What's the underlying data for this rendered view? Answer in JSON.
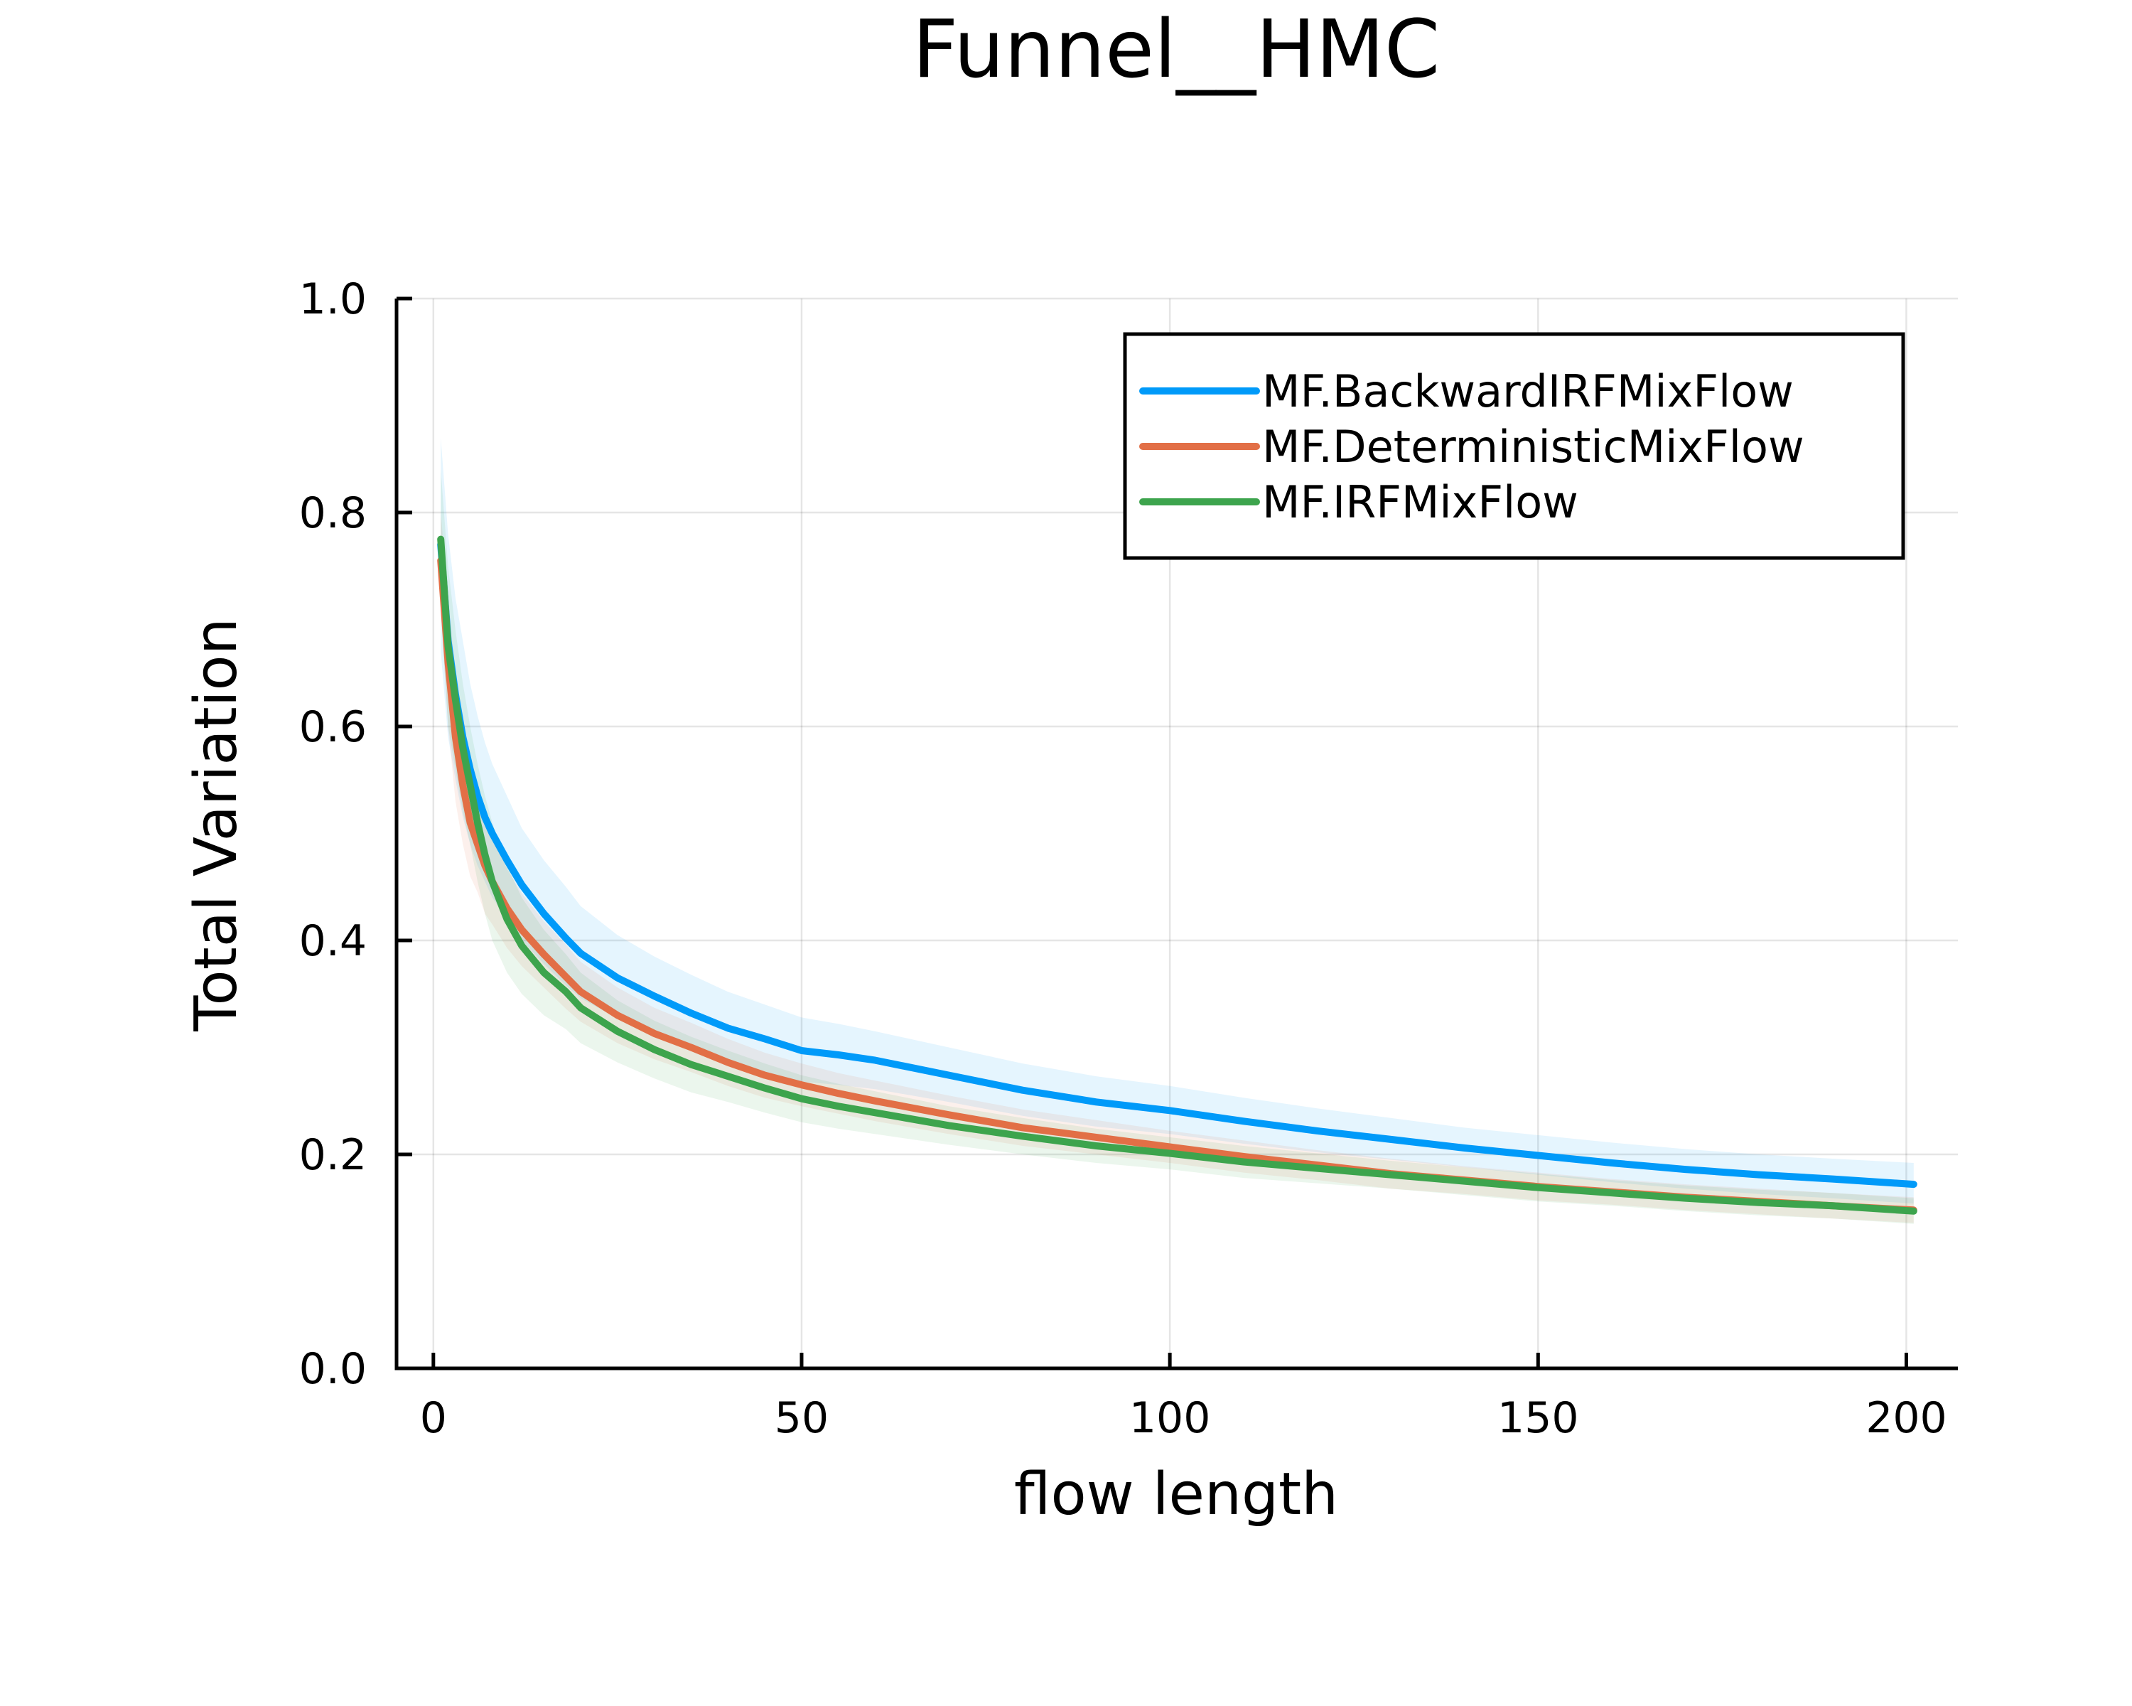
{
  "chart_data": {
    "type": "line",
    "title": "Funnel__HMC",
    "xlabel": "flow length",
    "ylabel": "Total Variation",
    "xlim": [
      -5,
      207
    ],
    "ylim": [
      0,
      1
    ],
    "xticks": [
      0,
      50,
      100,
      150,
      200
    ],
    "yticks": [
      0.0,
      0.2,
      0.4,
      0.6,
      0.8,
      1.0
    ],
    "xtick_labels": [
      "0",
      "50",
      "100",
      "150",
      "200"
    ],
    "ytick_labels": [
      "0.0",
      "0.2",
      "0.4",
      "0.6",
      "0.8",
      "1.0"
    ],
    "grid": true,
    "legend_position": "top-right",
    "x": [
      1,
      2,
      3,
      4,
      5,
      6,
      7,
      8,
      10,
      12,
      15,
      18,
      20,
      25,
      30,
      35,
      40,
      45,
      50,
      55,
      60,
      70,
      80,
      90,
      100,
      110,
      120,
      130,
      140,
      150,
      160,
      170,
      180,
      190,
      201
    ],
    "series": [
      {
        "name": "MF.BackwardIRFMixFlow",
        "color": "#009af9",
        "values": [
          0.77,
          0.68,
          0.63,
          0.59,
          0.56,
          0.535,
          0.515,
          0.5,
          0.475,
          0.452,
          0.425,
          0.402,
          0.388,
          0.365,
          0.348,
          0.332,
          0.318,
          0.308,
          0.297,
          0.293,
          0.288,
          0.274,
          0.26,
          0.249,
          0.241,
          0.231,
          0.222,
          0.214,
          0.206,
          0.199,
          0.192,
          0.186,
          0.181,
          0.177,
          0.172
        ],
        "upper": [
          0.87,
          0.78,
          0.72,
          0.68,
          0.64,
          0.61,
          0.585,
          0.565,
          0.535,
          0.505,
          0.475,
          0.45,
          0.432,
          0.405,
          0.385,
          0.368,
          0.352,
          0.34,
          0.328,
          0.322,
          0.315,
          0.3,
          0.285,
          0.273,
          0.264,
          0.253,
          0.243,
          0.234,
          0.225,
          0.218,
          0.211,
          0.205,
          0.2,
          0.196,
          0.192
        ],
        "lower": [
          0.67,
          0.59,
          0.55,
          0.515,
          0.49,
          0.47,
          0.455,
          0.44,
          0.42,
          0.4,
          0.378,
          0.358,
          0.346,
          0.327,
          0.313,
          0.298,
          0.286,
          0.277,
          0.268,
          0.265,
          0.261,
          0.249,
          0.236,
          0.226,
          0.219,
          0.21,
          0.202,
          0.195,
          0.188,
          0.181,
          0.174,
          0.168,
          0.163,
          0.159,
          0.154
        ]
      },
      {
        "name": "MF.DeterministicMixFlow",
        "color": "#e26f46",
        "values": [
          0.755,
          0.66,
          0.59,
          0.545,
          0.51,
          0.49,
          0.47,
          0.455,
          0.43,
          0.41,
          0.387,
          0.366,
          0.352,
          0.33,
          0.313,
          0.3,
          0.286,
          0.274,
          0.265,
          0.257,
          0.25,
          0.237,
          0.225,
          0.216,
          0.207,
          0.198,
          0.19,
          0.182,
          0.176,
          0.17,
          0.165,
          0.16,
          0.156,
          0.152,
          0.148
        ],
        "upper": [
          0.8,
          0.72,
          0.65,
          0.6,
          0.56,
          0.535,
          0.515,
          0.495,
          0.467,
          0.444,
          0.418,
          0.396,
          0.38,
          0.356,
          0.337,
          0.323,
          0.308,
          0.295,
          0.285,
          0.276,
          0.269,
          0.255,
          0.242,
          0.232,
          0.222,
          0.213,
          0.204,
          0.196,
          0.189,
          0.183,
          0.177,
          0.172,
          0.168,
          0.164,
          0.16
        ],
        "lower": [
          0.71,
          0.6,
          0.53,
          0.49,
          0.46,
          0.445,
          0.425,
          0.415,
          0.393,
          0.376,
          0.356,
          0.336,
          0.324,
          0.304,
          0.289,
          0.277,
          0.264,
          0.253,
          0.245,
          0.238,
          0.231,
          0.219,
          0.208,
          0.2,
          0.192,
          0.183,
          0.176,
          0.168,
          0.163,
          0.157,
          0.153,
          0.148,
          0.144,
          0.14,
          0.136
        ]
      },
      {
        "name": "MF.IRFMixFlow",
        "color": "#3da44d",
        "values": [
          0.775,
          0.675,
          0.625,
          0.58,
          0.545,
          0.51,
          0.48,
          0.455,
          0.42,
          0.395,
          0.37,
          0.352,
          0.337,
          0.315,
          0.298,
          0.284,
          0.273,
          0.262,
          0.252,
          0.245,
          0.239,
          0.227,
          0.217,
          0.208,
          0.201,
          0.193,
          0.187,
          0.181,
          0.175,
          0.169,
          0.164,
          0.159,
          0.155,
          0.152,
          0.147
        ],
        "upper": [
          0.84,
          0.75,
          0.69,
          0.64,
          0.6,
          0.565,
          0.535,
          0.51,
          0.47,
          0.44,
          0.41,
          0.387,
          0.37,
          0.344,
          0.325,
          0.31,
          0.297,
          0.285,
          0.274,
          0.266,
          0.259,
          0.245,
          0.234,
          0.224,
          0.216,
          0.208,
          0.201,
          0.194,
          0.188,
          0.182,
          0.176,
          0.171,
          0.167,
          0.164,
          0.159
        ],
        "lower": [
          0.71,
          0.6,
          0.56,
          0.52,
          0.49,
          0.455,
          0.425,
          0.4,
          0.37,
          0.35,
          0.33,
          0.317,
          0.304,
          0.286,
          0.271,
          0.258,
          0.249,
          0.239,
          0.23,
          0.224,
          0.219,
          0.209,
          0.2,
          0.192,
          0.186,
          0.178,
          0.173,
          0.168,
          0.162,
          0.156,
          0.152,
          0.147,
          0.143,
          0.14,
          0.135
        ]
      }
    ]
  }
}
